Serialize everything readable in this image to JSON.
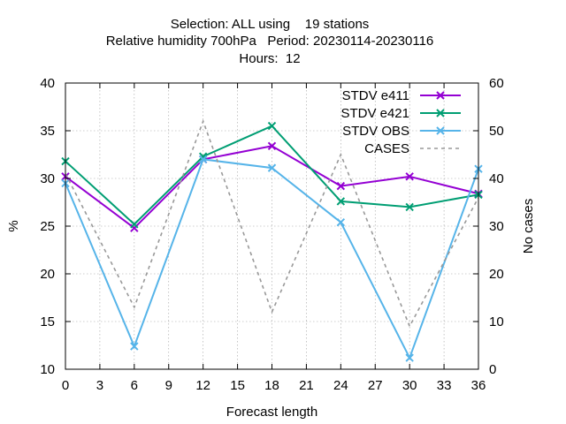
{
  "chart_data": {
    "type": "line",
    "title_lines": [
      "Selection: ALL using    19 stations",
      "Relative humidity 700hPa   Period: 20230114-20230116",
      "Hours:  12"
    ],
    "xlabel": "Forecast length",
    "ylabel": "%",
    "y2label": "No cases",
    "x": [
      0,
      6,
      12,
      18,
      24,
      30,
      36
    ],
    "xlim": [
      0,
      36
    ],
    "xticks": [
      0,
      3,
      6,
      9,
      12,
      15,
      18,
      21,
      24,
      27,
      30,
      33,
      36
    ],
    "ylim": [
      10,
      40
    ],
    "yticks": [
      10,
      15,
      20,
      25,
      30,
      35,
      40
    ],
    "y2lim": [
      0,
      60
    ],
    "y2ticks": [
      0,
      10,
      20,
      30,
      40,
      50,
      60
    ],
    "grid": true,
    "legend_position": "top-right",
    "series": [
      {
        "name": "STDV e411",
        "axis": "y1",
        "color": "#9400d3",
        "style": "solid",
        "marker": "x",
        "values": [
          30.2,
          24.8,
          32.0,
          33.4,
          29.2,
          30.2,
          28.4
        ]
      },
      {
        "name": "STDV e421",
        "axis": "y1",
        "color": "#009e73",
        "style": "solid",
        "marker": "x",
        "values": [
          31.8,
          25.2,
          32.3,
          35.5,
          27.6,
          27.0,
          28.3
        ]
      },
      {
        "name": "STDV OBS",
        "axis": "y1",
        "color": "#56b4e9",
        "style": "solid",
        "marker": "x",
        "values": [
          29.5,
          12.4,
          32.0,
          31.1,
          25.4,
          11.2,
          31.0
        ]
      },
      {
        "name": "CASES",
        "axis": "y2",
        "color": "#999999",
        "style": "dashed",
        "marker": "none",
        "values": [
          41,
          13,
          52,
          12,
          45,
          9,
          36
        ]
      }
    ]
  }
}
